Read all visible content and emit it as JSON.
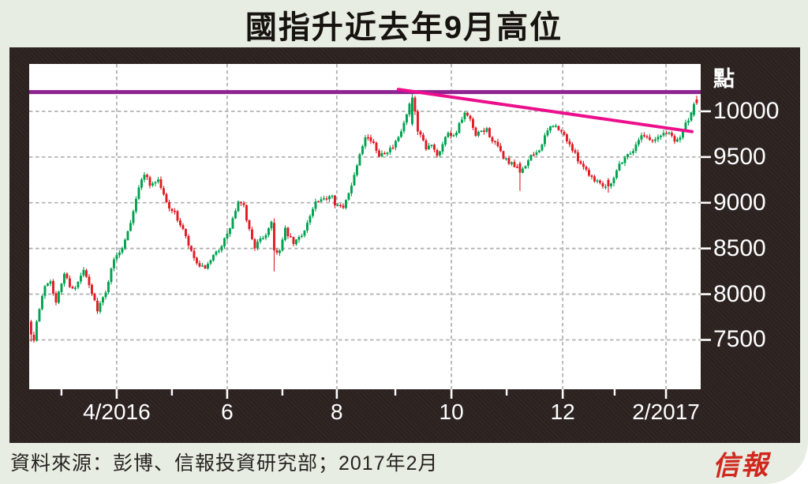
{
  "page": {
    "title": "國指升近去年9月高位",
    "source_note": "資料來源：彭博、信報投資研究部；2017年2月",
    "logo_text": "信報"
  },
  "chart_data": {
    "type": "candlestick",
    "title": "國指升近去年9月高位",
    "y_axis": {
      "unit_label": "點",
      "ticks": [
        10000,
        9500,
        9000,
        8500,
        8000,
        7500
      ],
      "visible_range_points": [
        6960,
        10520
      ],
      "grid": "dashed"
    },
    "x_axis": {
      "major_ticks": [
        {
          "label": "4/2016",
          "i": 31.4
        },
        {
          "label": "6",
          "i": 71.4
        },
        {
          "label": "8",
          "i": 111.1
        },
        {
          "label": "10",
          "i": 152.6
        },
        {
          "label": "12",
          "i": 192.9
        },
        {
          "label": "2/2017",
          "i": 230.3
        }
      ],
      "minor_tick_i": [
        11.4,
        51.4,
        91.4,
        132.3,
        172.6,
        211.7
      ],
      "grid": "dashed-on-major"
    },
    "levels": {
      "horizontal_resistance": {
        "value": 10210
      },
      "descending_trendline": {
        "from_i": 133.4,
        "from_points": 10240,
        "to_i": 239.7,
        "to_points": 9778
      }
    },
    "candles": {
      "count": 242,
      "noise_seed": 7,
      "anchors": [
        [
          0,
          7560
        ],
        [
          1,
          7520
        ],
        [
          2,
          7700
        ],
        [
          5,
          8100
        ],
        [
          7,
          8160
        ],
        [
          9,
          7900
        ],
        [
          12,
          8230
        ],
        [
          14,
          8100
        ],
        [
          16,
          8060
        ],
        [
          19,
          8260
        ],
        [
          22,
          8000
        ],
        [
          24,
          7840
        ],
        [
          27,
          8010
        ],
        [
          29,
          8300
        ],
        [
          31,
          8420
        ],
        [
          33,
          8520
        ],
        [
          36,
          8800
        ],
        [
          38,
          9050
        ],
        [
          40,
          9250
        ],
        [
          41,
          9330
        ],
        [
          43,
          9200
        ],
        [
          46,
          9250
        ],
        [
          49,
          9000
        ],
        [
          52,
          8880
        ],
        [
          55,
          8700
        ],
        [
          58,
          8450
        ],
        [
          61,
          8280
        ],
        [
          64,
          8310
        ],
        [
          67,
          8450
        ],
        [
          71,
          8640
        ],
        [
          75,
          9000
        ],
        [
          77,
          8950
        ],
        [
          79,
          8700
        ],
        [
          81,
          8520
        ],
        [
          85,
          8660
        ],
        [
          87,
          8790
        ],
        [
          88,
          8480
        ],
        [
          90,
          8470
        ],
        [
          92,
          8700
        ],
        [
          95,
          8550
        ],
        [
          98,
          8650
        ],
        [
          101,
          8850
        ],
        [
          103,
          9000
        ],
        [
          105,
          9010
        ],
        [
          107,
          9060
        ],
        [
          109,
          9100
        ],
        [
          110,
          9000
        ],
        [
          113,
          8930
        ],
        [
          115,
          9120
        ],
        [
          117,
          9300
        ],
        [
          119,
          9550
        ],
        [
          121,
          9740
        ],
        [
          123,
          9680
        ],
        [
          126,
          9530
        ],
        [
          128,
          9560
        ],
        [
          131,
          9600
        ],
        [
          133,
          9700
        ],
        [
          135,
          9860
        ],
        [
          137,
          10060
        ],
        [
          138,
          10150
        ],
        [
          139,
          10000
        ],
        [
          140,
          9780
        ],
        [
          141,
          9730
        ],
        [
          143,
          9580
        ],
        [
          145,
          9650
        ],
        [
          147,
          9530
        ],
        [
          149,
          9640
        ],
        [
          151,
          9780
        ],
        [
          153,
          9730
        ],
        [
          155,
          9850
        ],
        [
          157,
          9970
        ],
        [
          159,
          9900
        ],
        [
          161,
          9720
        ],
        [
          163,
          9780
        ],
        [
          165,
          9800
        ],
        [
          167,
          9680
        ],
        [
          169,
          9600
        ],
        [
          171,
          9500
        ],
        [
          173,
          9440
        ],
        [
          175,
          9390
        ],
        [
          177,
          9330
        ],
        [
          179,
          9420
        ],
        [
          181,
          9500
        ],
        [
          183,
          9550
        ],
        [
          185,
          9640
        ],
        [
          187,
          9780
        ],
        [
          189,
          9860
        ],
        [
          191,
          9790
        ],
        [
          193,
          9740
        ],
        [
          195,
          9640
        ],
        [
          197,
          9520
        ],
        [
          199,
          9440
        ],
        [
          201,
          9360
        ],
        [
          203,
          9280
        ],
        [
          205,
          9240
        ],
        [
          207,
          9200
        ],
        [
          209,
          9170
        ],
        [
          211,
          9290
        ],
        [
          213,
          9420
        ],
        [
          215,
          9500
        ],
        [
          217,
          9550
        ],
        [
          219,
          9620
        ],
        [
          221,
          9760
        ],
        [
          223,
          9720
        ],
        [
          225,
          9670
        ],
        [
          227,
          9710
        ],
        [
          229,
          9760
        ],
        [
          231,
          9770
        ],
        [
          233,
          9690
        ],
        [
          235,
          9720
        ],
        [
          237,
          9860
        ],
        [
          239,
          9960
        ],
        [
          241,
          10090
        ]
      ],
      "overrides": {
        "0": [
          7700,
          7720,
          7480,
          7560
        ],
        "88": [
          8780,
          8830,
          8250,
          8480
        ],
        "138": [
          9860,
          10200,
          9840,
          10150
        ],
        "139": [
          10150,
          10170,
          9960,
          10000
        ],
        "140": [
          10000,
          10020,
          9740,
          9780
        ],
        "177": [
          9430,
          9450,
          9130,
          9330
        ],
        "209": [
          9250,
          9270,
          9110,
          9180
        ],
        "240": [
          9960,
          10100,
          9940,
          10080
        ],
        "241": [
          10130,
          10170,
          10070,
          10090
        ]
      }
    },
    "colors": {
      "up": "#00a14e",
      "down": "#e11b23",
      "resistance": "#8e2391",
      "trendline": "#ec0f8c",
      "grid": "#b3b3b3",
      "tick": "#ffffff",
      "frame": "#2a211f",
      "plot_bg": "#ffffff",
      "page_bg": "#e8ede3",
      "logo_red": "#d0281e"
    }
  }
}
